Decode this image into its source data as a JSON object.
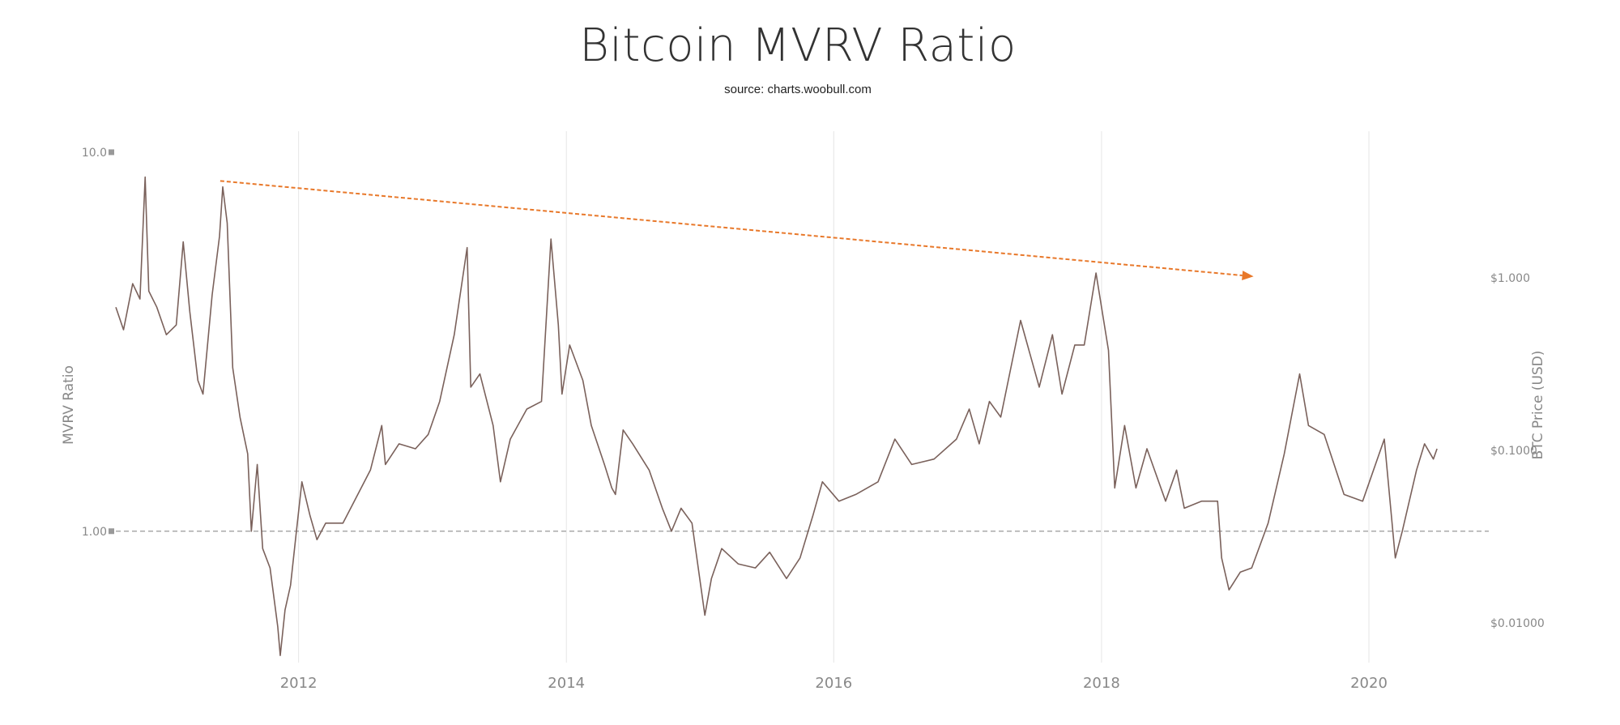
{
  "chart_data": {
    "type": "line",
    "title": "Bitcoin MVRV Ratio",
    "subtitle": "source: charts.woobull.com",
    "ylabel": "MVRV Ratio",
    "y2label": "BTC Price (USD)",
    "yscale": "log",
    "ylim": [
      0.45,
      10.5
    ],
    "yticks": [
      {
        "value": 10,
        "label": "10.0"
      },
      {
        "value": 1,
        "label": "1.00"
      }
    ],
    "y2ticks": [
      {
        "label": "$1.000"
      },
      {
        "label": "$0.1000"
      },
      {
        "label": "$0.01000"
      }
    ],
    "xlim": [
      "2010-08-20",
      "2020-11-10"
    ],
    "xticks": [
      {
        "date": "2012-01-01",
        "label": "2012"
      },
      {
        "date": "2014-01-01",
        "label": "2014"
      },
      {
        "date": "2016-01-01",
        "label": "2016"
      },
      {
        "date": "2018-01-01",
        "label": "2018"
      },
      {
        "date": "2020-01-01",
        "label": "2020"
      }
    ],
    "reference_line": {
      "value": 1.0,
      "style": "dashed"
    },
    "grid": {
      "vertical": true,
      "horizontal": false
    },
    "colors": {
      "series": "#7a615b",
      "trend_arrow": "#e8782a",
      "reference": "#999999",
      "grid": "#e6e6e6"
    },
    "annotations": [
      {
        "type": "arrow",
        "style": "dashed",
        "from": {
          "x": "2011-06-01",
          "y": 8.4
        },
        "to": {
          "x": "2019-02-20",
          "y": 4.7
        }
      }
    ],
    "series": [
      {
        "points": [
          [
            "2010-08-20",
            3.9
          ],
          [
            "2010-09-10",
            3.4
          ],
          [
            "2010-10-05",
            4.5
          ],
          [
            "2010-10-25",
            4.1
          ],
          [
            "2010-11-08",
            8.6
          ],
          [
            "2010-11-18",
            4.3
          ],
          [
            "2010-12-10",
            3.9
          ],
          [
            "2011-01-05",
            3.3
          ],
          [
            "2011-02-01",
            3.5
          ],
          [
            "2011-02-20",
            5.8
          ],
          [
            "2011-03-10",
            3.8
          ],
          [
            "2011-04-01",
            2.5
          ],
          [
            "2011-04-15",
            2.3
          ],
          [
            "2011-05-10",
            4.2
          ],
          [
            "2011-05-30",
            6.0
          ],
          [
            "2011-06-08",
            8.1
          ],
          [
            "2011-06-20",
            6.5
          ],
          [
            "2011-07-05",
            2.7
          ],
          [
            "2011-07-25",
            2.0
          ],
          [
            "2011-08-15",
            1.6
          ],
          [
            "2011-08-25",
            1.0
          ],
          [
            "2011-09-10",
            1.5
          ],
          [
            "2011-09-25",
            0.9
          ],
          [
            "2011-10-15",
            0.8
          ],
          [
            "2011-11-05",
            0.56
          ],
          [
            "2011-11-12",
            0.47
          ],
          [
            "2011-11-25",
            0.62
          ],
          [
            "2011-12-10",
            0.72
          ],
          [
            "2011-12-25",
            0.98
          ],
          [
            "2012-01-10",
            1.35
          ],
          [
            "2012-02-01",
            1.1
          ],
          [
            "2012-02-20",
            0.95
          ],
          [
            "2012-03-15",
            1.05
          ],
          [
            "2012-05-01",
            1.05
          ],
          [
            "2012-06-01",
            1.2
          ],
          [
            "2012-07-15",
            1.45
          ],
          [
            "2012-08-15",
            1.9
          ],
          [
            "2012-08-25",
            1.5
          ],
          [
            "2012-10-01",
            1.7
          ],
          [
            "2012-11-15",
            1.65
          ],
          [
            "2012-12-20",
            1.8
          ],
          [
            "2013-01-20",
            2.2
          ],
          [
            "2013-03-01",
            3.3
          ],
          [
            "2013-04-05",
            5.6
          ],
          [
            "2013-04-15",
            2.4
          ],
          [
            "2013-05-10",
            2.6
          ],
          [
            "2013-06-15",
            1.9
          ],
          [
            "2013-07-05",
            1.35
          ],
          [
            "2013-08-01",
            1.75
          ],
          [
            "2013-09-15",
            2.1
          ],
          [
            "2013-10-25",
            2.2
          ],
          [
            "2013-11-20",
            5.9
          ],
          [
            "2013-12-10",
            3.5
          ],
          [
            "2013-12-20",
            2.3
          ],
          [
            "2014-01-10",
            3.1
          ],
          [
            "2014-02-15",
            2.5
          ],
          [
            "2014-03-10",
            1.9
          ],
          [
            "2014-04-15",
            1.5
          ],
          [
            "2014-05-05",
            1.3
          ],
          [
            "2014-05-15",
            1.25
          ],
          [
            "2014-06-05",
            1.85
          ],
          [
            "2014-07-01",
            1.7
          ],
          [
            "2014-08-15",
            1.45
          ],
          [
            "2014-09-20",
            1.15
          ],
          [
            "2014-10-15",
            1.0
          ],
          [
            "2014-11-10",
            1.15
          ],
          [
            "2014-12-10",
            1.05
          ],
          [
            "2015-01-14",
            0.6
          ],
          [
            "2015-02-01",
            0.75
          ],
          [
            "2015-03-01",
            0.9
          ],
          [
            "2015-04-15",
            0.82
          ],
          [
            "2015-06-01",
            0.8
          ],
          [
            "2015-07-10",
            0.88
          ],
          [
            "2015-08-25",
            0.75
          ],
          [
            "2015-10-01",
            0.85
          ],
          [
            "2015-11-05",
            1.1
          ],
          [
            "2015-12-01",
            1.35
          ],
          [
            "2016-01-15",
            1.2
          ],
          [
            "2016-03-01",
            1.25
          ],
          [
            "2016-05-01",
            1.35
          ],
          [
            "2016-06-16",
            1.75
          ],
          [
            "2016-08-01",
            1.5
          ],
          [
            "2016-10-01",
            1.55
          ],
          [
            "2016-12-01",
            1.75
          ],
          [
            "2017-01-05",
            2.1
          ],
          [
            "2017-02-01",
            1.7
          ],
          [
            "2017-03-01",
            2.2
          ],
          [
            "2017-04-01",
            2.0
          ],
          [
            "2017-05-25",
            3.6
          ],
          [
            "2017-07-15",
            2.4
          ],
          [
            "2017-08-20",
            3.3
          ],
          [
            "2017-09-15",
            2.3
          ],
          [
            "2017-10-20",
            3.1
          ],
          [
            "2017-11-15",
            3.1
          ],
          [
            "2017-12-17",
            4.8
          ],
          [
            "2018-01-20",
            3.0
          ],
          [
            "2018-02-06",
            1.3
          ],
          [
            "2018-03-05",
            1.9
          ],
          [
            "2018-04-05",
            1.3
          ],
          [
            "2018-05-05",
            1.65
          ],
          [
            "2018-06-25",
            1.2
          ],
          [
            "2018-07-25",
            1.45
          ],
          [
            "2018-08-15",
            1.15
          ],
          [
            "2018-10-01",
            1.2
          ],
          [
            "2018-11-14",
            1.2
          ],
          [
            "2018-11-25",
            0.85
          ],
          [
            "2018-12-15",
            0.7
          ],
          [
            "2019-01-15",
            0.78
          ],
          [
            "2019-02-15",
            0.8
          ],
          [
            "2019-04-01",
            1.05
          ],
          [
            "2019-05-15",
            1.6
          ],
          [
            "2019-06-26",
            2.6
          ],
          [
            "2019-07-20",
            1.9
          ],
          [
            "2019-09-01",
            1.8
          ],
          [
            "2019-10-25",
            1.25
          ],
          [
            "2019-12-15",
            1.2
          ],
          [
            "2020-02-12",
            1.75
          ],
          [
            "2020-03-13",
            0.85
          ],
          [
            "2020-04-01",
            1.0
          ],
          [
            "2020-05-10",
            1.45
          ],
          [
            "2020-06-01",
            1.7
          ],
          [
            "2020-06-25",
            1.55
          ],
          [
            "2020-07-05",
            1.65
          ]
        ]
      }
    ]
  }
}
